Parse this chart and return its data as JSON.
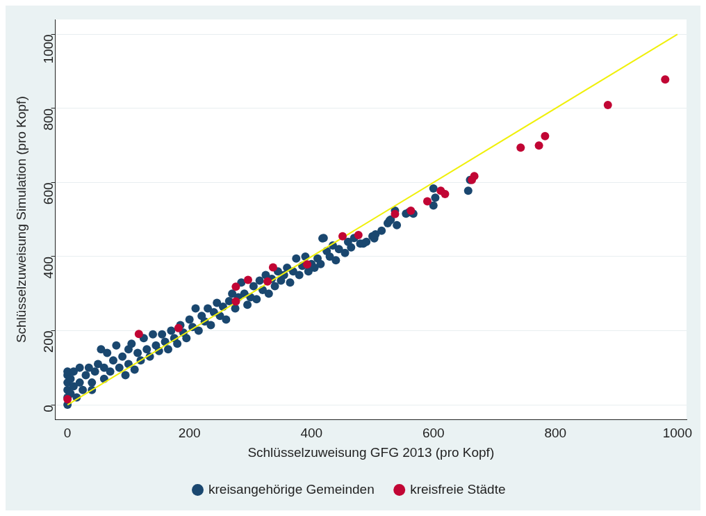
{
  "chart_data": {
    "type": "scatter",
    "xlabel": "Schlüsselzuweisung GFG 2013 (pro Kopf)",
    "ylabel": "Schlüsselzuweisung Simulation (pro Kopf)",
    "xlim": [
      -20,
      1015
    ],
    "ylim": [
      -40,
      1040
    ],
    "xticks": [
      0,
      200,
      400,
      600,
      800,
      1000
    ],
    "yticks": [
      0,
      200,
      400,
      600,
      800,
      1000
    ],
    "grid": "y",
    "legend": "bottom",
    "series": [
      {
        "name": "kreisangehörige Gemeinden",
        "color": "#1a476f",
        "marker": "circle",
        "x": [
          0,
          0,
          0,
          0,
          0,
          0,
          5,
          5,
          10,
          10,
          15,
          20,
          20,
          25,
          30,
          35,
          40,
          40,
          45,
          50,
          55,
          60,
          60,
          65,
          70,
          75,
          80,
          85,
          90,
          95,
          100,
          100,
          105,
          110,
          115,
          120,
          125,
          130,
          135,
          140,
          145,
          150,
          155,
          160,
          165,
          170,
          175,
          180,
          185,
          190,
          195,
          200,
          205,
          210,
          215,
          220,
          225,
          230,
          235,
          240,
          245,
          250,
          255,
          260,
          265,
          270,
          275,
          280,
          285,
          290,
          295,
          300,
          305,
          310,
          315,
          320,
          325,
          330,
          335,
          340,
          345,
          350,
          355,
          360,
          365,
          370,
          375,
          380,
          385,
          390,
          395,
          400,
          405,
          410,
          415,
          418,
          420,
          425,
          430,
          435,
          440,
          445,
          455,
          460,
          465,
          470,
          480,
          485,
          490,
          500,
          503,
          505,
          515,
          525,
          528,
          530,
          537,
          540,
          555,
          560,
          567,
          600,
          600,
          603,
          657,
          660
        ],
        "values": [
          0,
          20,
          40,
          60,
          80,
          90,
          30,
          70,
          50,
          90,
          20,
          60,
          100,
          40,
          80,
          100,
          60,
          40,
          90,
          110,
          150,
          70,
          100,
          140,
          90,
          120,
          160,
          100,
          130,
          80,
          110,
          150,
          165,
          95,
          140,
          120,
          180,
          150,
          130,
          190,
          160,
          145,
          190,
          170,
          150,
          200,
          180,
          165,
          215,
          195,
          180,
          230,
          210,
          260,
          200,
          240,
          225,
          260,
          215,
          250,
          275,
          240,
          265,
          230,
          280,
          300,
          260,
          290,
          330,
          300,
          270,
          290,
          320,
          285,
          335,
          310,
          350,
          300,
          340,
          320,
          360,
          335,
          350,
          370,
          330,
          360,
          395,
          350,
          375,
          400,
          360,
          380,
          370,
          395,
          380,
          449,
          450,
          415,
          400,
          430,
          390,
          420,
          410,
          440,
          425,
          450,
          435,
          435,
          440,
          455,
          449,
          460,
          470,
          490,
          497,
          500,
          524,
          485,
          516,
          520,
          516,
          584,
          538,
          559,
          578,
          607
        ]
      },
      {
        "name": "kreisfreie Städte",
        "color": "#c10534",
        "marker": "circle",
        "x": [
          0,
          117,
          182,
          276,
          276,
          296,
          328,
          337,
          393,
          451,
          477,
          537,
          563,
          590,
          612,
          619,
          663,
          667,
          743,
          773,
          783,
          886,
          980
        ],
        "values": [
          15,
          191,
          207,
          279,
          319,
          337,
          333,
          371,
          379,
          455,
          458,
          515,
          524,
          549,
          578,
          569,
          607,
          617,
          694,
          700,
          725,
          809,
          878
        ]
      },
      {
        "type": "line",
        "color": "#f0f00a",
        "x": [
          0,
          1000
        ],
        "values": [
          0,
          1000
        ]
      }
    ]
  }
}
